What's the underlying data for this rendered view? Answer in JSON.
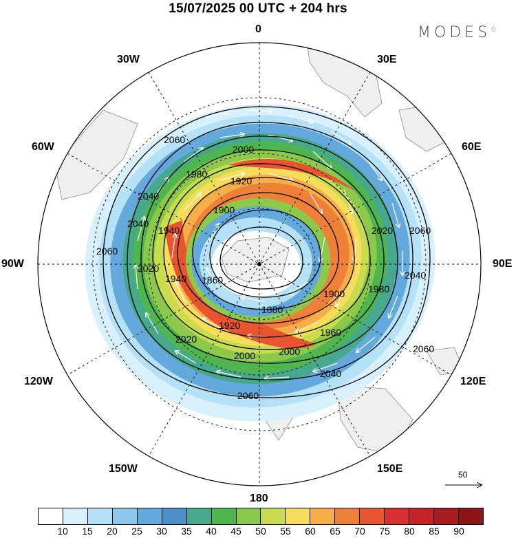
{
  "title": "15/07/2025  00 UTC  + 204 hrs",
  "brand": {
    "name": "MODES",
    "mark": "©"
  },
  "longitude_labels": {
    "lon_0": "0",
    "lon_30E": "30E",
    "lon_60E": "60E",
    "lon_90E": "90E",
    "lon_120E": "120E",
    "lon_150E": "150E",
    "lon_180": "180",
    "lon_150W": "150W",
    "lon_120W": "120W",
    "lon_90W": "90W",
    "lon_60W": "60W",
    "lon_30W": "30W"
  },
  "contour_labels": {
    "c2060": "2060",
    "c2040": "2040",
    "c2020": "2020",
    "c2000": "2000",
    "c1980": "1980",
    "c1960": "1960",
    "c1940": "1940",
    "c1920": "1920",
    "c1900": "1900",
    "c1880": "1880",
    "c1860": "1860"
  },
  "wind_scale": {
    "value": "50"
  },
  "colorbar": {
    "colors": [
      "#ffffff",
      "#d8f0fb",
      "#b4e1f6",
      "#8cc8ec",
      "#64a9dc",
      "#4a8fc7",
      "#46a88c",
      "#4fb64f",
      "#8cc84a",
      "#c8dc4e",
      "#f6dc5a",
      "#f5ae48",
      "#ef8038",
      "#e8542e",
      "#d83030",
      "#c42428",
      "#a81d22",
      "#8c1518"
    ],
    "ticks": [
      "10",
      "15",
      "20",
      "25",
      "30",
      "35",
      "40",
      "45",
      "50",
      "55",
      "60",
      "65",
      "70",
      "75",
      "80",
      "85",
      "90"
    ]
  }
}
